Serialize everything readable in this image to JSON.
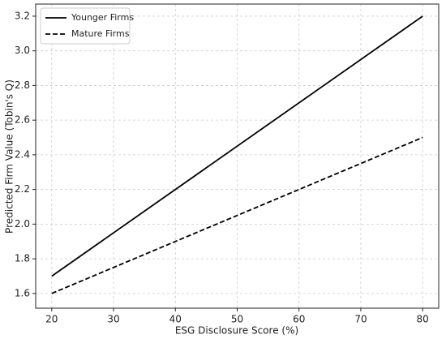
{
  "chart_data": {
    "type": "line",
    "x_label": "ESG Disclosure Score (%)",
    "y_label": "Predicted Firm Value (Tobin's Q)",
    "x": [
      20,
      80
    ],
    "series": [
      {
        "name": "Younger Firms",
        "color": "#000000",
        "style": "solid",
        "values": [
          1.7,
          3.2
        ]
      },
      {
        "name": "Mature Firms",
        "color": "#000000",
        "style": "dashed",
        "values": [
          1.6,
          2.5
        ]
      }
    ],
    "xlim": [
      17.4,
      82.6
    ],
    "ylim": [
      1.515,
      3.27
    ],
    "xticks": [
      20,
      30,
      40,
      50,
      60,
      70,
      80
    ],
    "yticks": [
      1.6,
      1.8,
      {
        "value": 2,
        "label": "2.0"
      },
      2.2,
      2.4,
      2.6,
      2.8,
      {
        "value": 3,
        "label": "3.0"
      },
      3.2
    ],
    "grid": true,
    "legend": "upper left"
  }
}
